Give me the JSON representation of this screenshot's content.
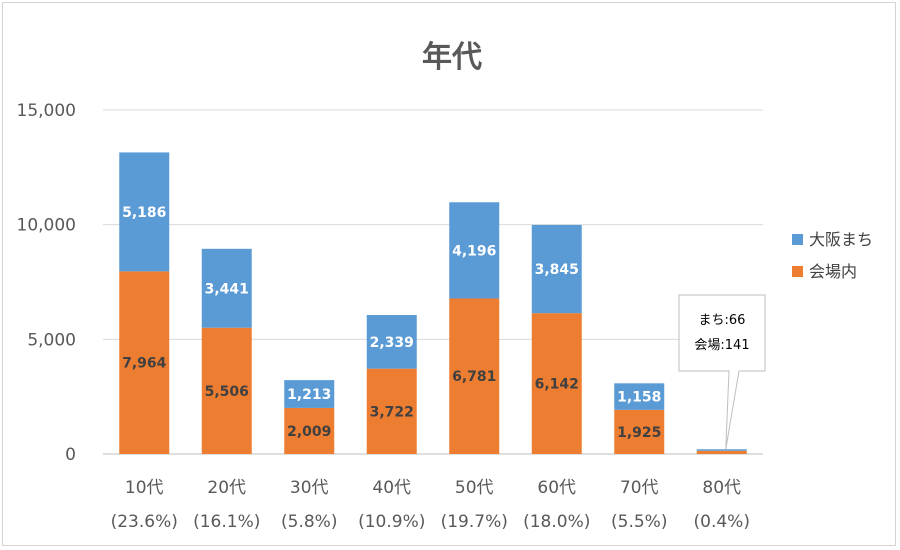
{
  "chart_data": {
    "type": "bar",
    "stacked": true,
    "title": "年代",
    "categories": [
      "10代",
      "20代",
      "30代",
      "40代",
      "50代",
      "60代",
      "70代",
      "80代"
    ],
    "category_shares": [
      "(23.6%)",
      "(16.1%)",
      "(5.8%)",
      "(10.9%)",
      "(19.7%)",
      "(18.0%)",
      "(5.5%)",
      "(0.4%)"
    ],
    "series": [
      {
        "name": "会場内",
        "color": "#ED7D31",
        "label_color": "#404040",
        "values": [
          7964,
          5506,
          2009,
          3722,
          6781,
          6142,
          1925,
          141
        ],
        "labels": [
          "7,964",
          "5,506",
          "2,009",
          "3,722",
          "6,781",
          "6,142",
          "1,925",
          ""
        ]
      },
      {
        "name": "大阪まち",
        "color": "#5B9BD5",
        "label_color": "#ffffff",
        "values": [
          5186,
          3441,
          1213,
          2339,
          4196,
          3845,
          1158,
          66
        ],
        "labels": [
          "5,186",
          "3,441",
          "1,213",
          "2,339",
          "4,196",
          "3,845",
          "1,158",
          ""
        ]
      }
    ],
    "ylim": [
      0,
      15000
    ],
    "yticks": [
      0,
      5000,
      10000,
      15000
    ],
    "ytick_labels": [
      "0",
      "5,000",
      "10,000",
      "15,000"
    ],
    "grid": true,
    "legend": "right",
    "callout": {
      "category": "80代",
      "lines": [
        "まち:66",
        "会場:141"
      ]
    }
  }
}
